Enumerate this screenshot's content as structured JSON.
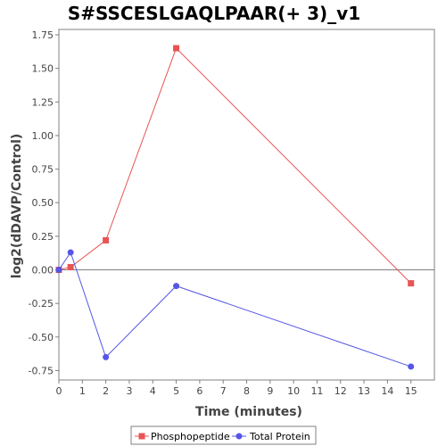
{
  "chart_data": {
    "type": "line",
    "title": "S#SSCESLGAQLPAAR(+ 3)_v1",
    "xlabel": "Time (minutes)",
    "ylabel": "log2(dDAVP/Control)",
    "xlim": [
      0,
      16
    ],
    "ylim": [
      -0.82,
      1.79
    ],
    "x_ticks": [
      0,
      1,
      2,
      3,
      4,
      5,
      6,
      7,
      8,
      9,
      10,
      11,
      12,
      13,
      14,
      15
    ],
    "y_ticks": [
      1.75,
      1.5,
      1.25,
      1.0,
      0.75,
      0.5,
      0.25,
      0.0,
      -0.25,
      -0.5,
      -0.75
    ],
    "y_tick_labels": [
      "1.75",
      "1.50",
      "1.25",
      "1.00",
      "0.75",
      "0.50",
      "0.25",
      "0.00",
      "-0.25",
      "-0.50",
      "-0.75"
    ],
    "zero_line": true,
    "legend_position": "bottom",
    "series": [
      {
        "name": "Phosphopeptide",
        "color": "#e85454",
        "marker": "square",
        "x": [
          0,
          0.5,
          2,
          5,
          15
        ],
        "y": [
          0.0,
          0.02,
          0.22,
          1.65,
          -0.1
        ]
      },
      {
        "name": "Total Protein",
        "color": "#5555e6",
        "marker": "circle",
        "x": [
          0,
          0.5,
          2,
          5,
          15
        ],
        "y": [
          0.0,
          0.13,
          -0.65,
          -0.12,
          -0.72
        ]
      }
    ]
  }
}
